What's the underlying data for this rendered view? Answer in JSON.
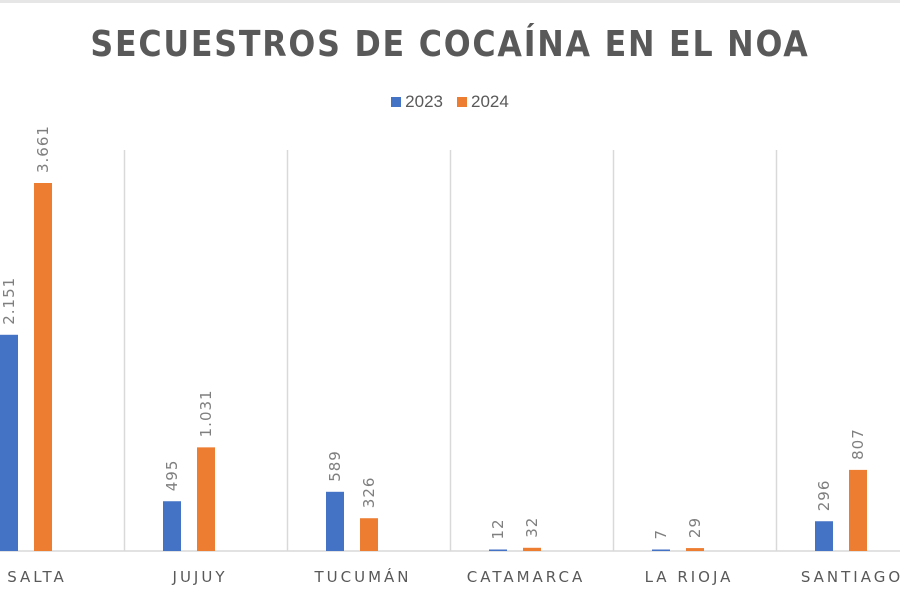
{
  "chart_data": {
    "type": "bar",
    "title": "SECUESTROS DE COCAÍNA EN EL NOA",
    "categories": [
      "SALTA",
      "JUJUY",
      "TUCUMÁN",
      "CATAMARCA",
      "LA RIOJA",
      "SANTIAGO"
    ],
    "series": [
      {
        "name": "2023",
        "color": "#4472C4",
        "values": [
          2151,
          495,
          589,
          12,
          7,
          296
        ],
        "labels": [
          "2.151",
          "495",
          "589",
          "12",
          "7",
          "296"
        ]
      },
      {
        "name": "2024",
        "color": "#ED7D31",
        "values": [
          3661,
          1031,
          326,
          32,
          29,
          807
        ],
        "labels": [
          "3.661",
          "1.031",
          "326",
          "32",
          "29",
          "807"
        ]
      }
    ],
    "xlabel": "",
    "ylabel": "",
    "ylim": [
      0,
      4000
    ],
    "legend_position": "top",
    "grid": "vertical category separators"
  }
}
